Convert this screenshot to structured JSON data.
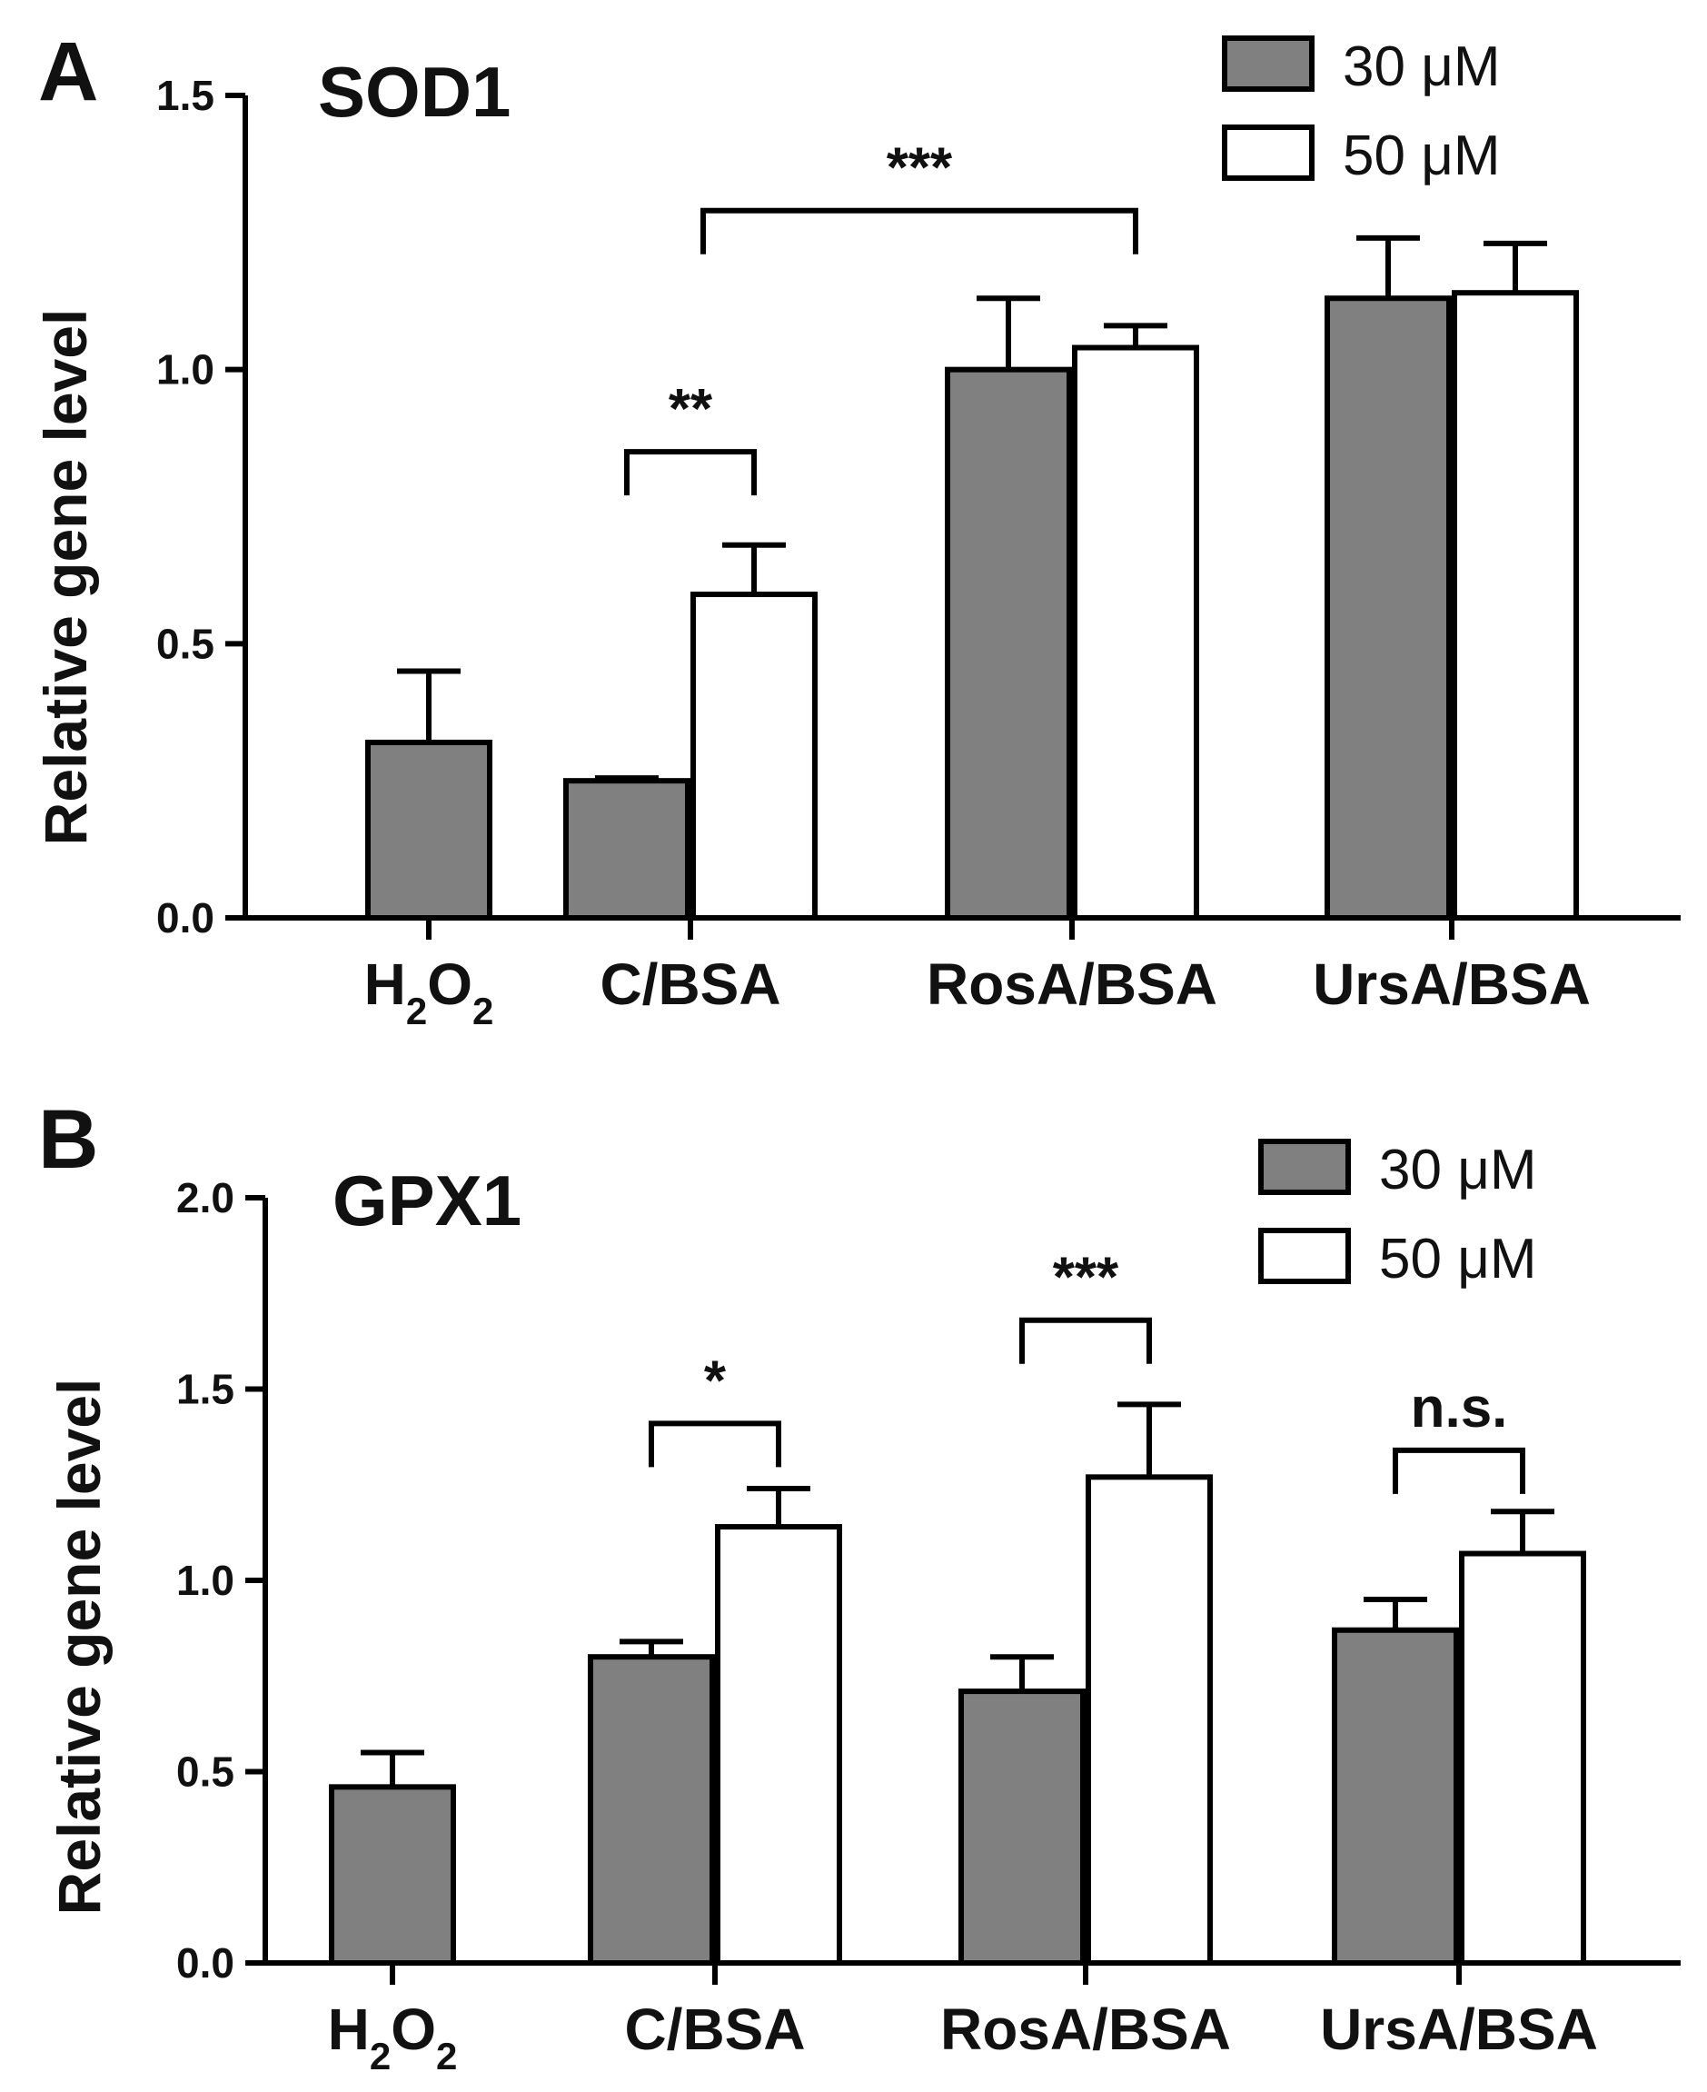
{
  "chart_data": [
    {
      "panel": "A",
      "type": "bar",
      "title": "SOD1",
      "ylabel": "Relative gene level",
      "xlabel": "",
      "ylim": [
        0,
        1.5
      ],
      "yticks": [
        "0.0",
        "0.5",
        "1.0",
        "1.5"
      ],
      "categories": [
        {
          "base": "H",
          "sub1": "2",
          "mid": "O",
          "sub2": "2"
        },
        {
          "base": "C/BSA"
        },
        {
          "base": "RosA/BSA"
        },
        {
          "base": "UrsA/BSA"
        }
      ],
      "legend": [
        "30 μM",
        "50 μM"
      ],
      "series": [
        {
          "name": "30 μM",
          "color": "#808080",
          "values": [
            0.32,
            0.25,
            1.0,
            1.13
          ],
          "errors": [
            0.13,
            0.005,
            0.13,
            0.11
          ]
        },
        {
          "name": "50 μM",
          "color": "#ffffff",
          "values": [
            null,
            0.59,
            1.04,
            1.14
          ],
          "errors": [
            null,
            0.09,
            0.04,
            0.09
          ]
        }
      ],
      "significance": [
        {
          "label": "**",
          "from_cat": 1,
          "from_series": 0,
          "to_cat": 1,
          "to_series": 1,
          "level": 0.85
        },
        {
          "label": "***",
          "from_cat": 1,
          "from_series": 0.6,
          "to_cat": 2,
          "to_series": 1,
          "level": 1.29
        }
      ]
    },
    {
      "panel": "B",
      "type": "bar",
      "title": "GPX1",
      "ylabel": "Relative gene level",
      "xlabel": "",
      "ylim": [
        0,
        2.0
      ],
      "yticks": [
        "0.0",
        "0.5",
        "1.0",
        "1.5",
        "2.0"
      ],
      "categories": [
        {
          "base": "H",
          "sub1": "2",
          "mid": "O",
          "sub2": "2"
        },
        {
          "base": "C/BSA"
        },
        {
          "base": "RosA/BSA"
        },
        {
          "base": "UrsA/BSA"
        }
      ],
      "legend": [
        "30 μM",
        "50 μM"
      ],
      "series": [
        {
          "name": "30 μM",
          "color": "#808080",
          "values": [
            0.46,
            0.8,
            0.71,
            0.87
          ],
          "errors": [
            0.09,
            0.04,
            0.09,
            0.08
          ]
        },
        {
          "name": "50 μM",
          "color": "#ffffff",
          "values": [
            null,
            1.14,
            1.27,
            1.07
          ],
          "errors": [
            null,
            0.1,
            0.19,
            0.11
          ]
        }
      ],
      "significance": [
        {
          "label": "*",
          "from_cat": 1,
          "from_series": 0,
          "to_cat": 1,
          "to_series": 1,
          "level": 1.41
        },
        {
          "label": "***",
          "from_cat": 2,
          "from_series": 0,
          "to_cat": 2,
          "to_series": 1,
          "level": 1.68
        },
        {
          "label": "n.s.",
          "from_cat": 3,
          "from_series": 0,
          "to_cat": 3,
          "to_series": 1,
          "level": 1.34
        }
      ]
    }
  ]
}
